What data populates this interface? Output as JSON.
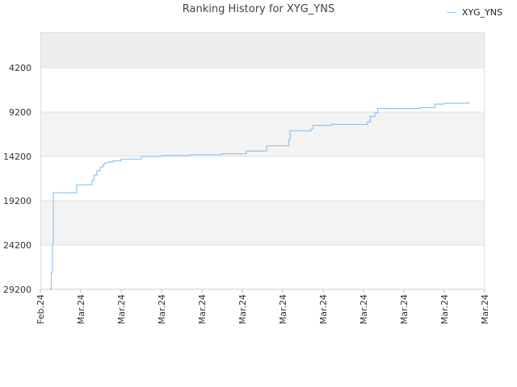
{
  "chart_data": {
    "type": "line",
    "title": "Ranking History for XYG_YNS",
    "xlabel": "",
    "ylabel": "",
    "y_inverted": true,
    "ylim": [
      29200,
      200
    ],
    "yticks": [
      4200,
      9200,
      14200,
      19200,
      24200,
      29200
    ],
    "x_tick_labels": [
      "Feb.24",
      "Mar.24",
      "Mar.24",
      "Mar.24",
      "Mar.24",
      "Mar.24",
      "Mar.24",
      "Mar.24",
      "Mar.24",
      "Mar.24",
      "Mar.24",
      "Mar.24"
    ],
    "xlim": [
      0,
      11
    ],
    "grid": "horizontal alternating bands",
    "legend_position": "top-right",
    "series": [
      {
        "name": "XYG_YNS",
        "color": "#93c4ee",
        "x": [
          0.23,
          0.26,
          0.27,
          0.29,
          0.3,
          0.32,
          0.9,
          1.28,
          1.33,
          1.4,
          1.48,
          1.55,
          1.6,
          1.7,
          1.8,
          2.0,
          2.5,
          3.0,
          3.7,
          4.5,
          5.1,
          5.6,
          6.15,
          6.18,
          6.7,
          6.75,
          7.2,
          8.1,
          8.17,
          8.28,
          8.35,
          9.0,
          9.4,
          9.75,
          9.77,
          10.0,
          10.6
        ],
        "y": [
          29200,
          29000,
          27300,
          27100,
          24000,
          18300,
          17400,
          16900,
          16300,
          15800,
          15400,
          15100,
          14900,
          14800,
          14700,
          14500,
          14200,
          14100,
          14000,
          13900,
          13600,
          13000,
          12300,
          11300,
          11100,
          10700,
          10600,
          10300,
          9700,
          9300,
          8800,
          8800,
          8700,
          8700,
          8300,
          8200,
          8000
        ]
      }
    ]
  }
}
